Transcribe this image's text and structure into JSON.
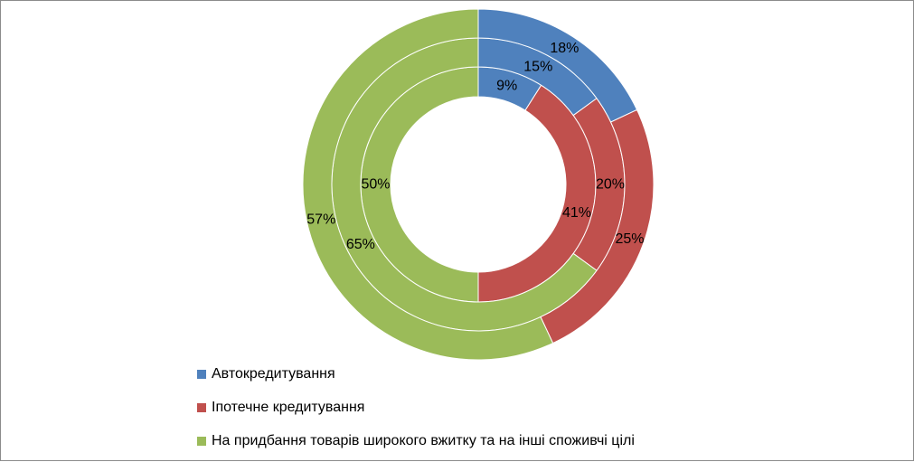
{
  "chart_data": {
    "type": "donut",
    "title": "",
    "legend_position": "bottom",
    "categories": [
      "Автокредитування",
      "Іпотечне кредитування",
      "На придбання товарів широкого вжитку та на інші споживчі цілі"
    ],
    "colors": [
      "#4F81BD",
      "#C0504D",
      "#9BBB59"
    ],
    "series": [
      {
        "values": [
          9,
          41,
          50
        ],
        "labels": [
          "9%",
          "41%",
          "50%"
        ]
      },
      {
        "values": [
          15,
          20,
          65
        ],
        "labels": [
          "15%",
          "20%",
          "65%"
        ]
      },
      {
        "values": [
          18,
          25,
          57
        ],
        "labels": [
          "18%",
          "25%",
          "57%"
        ]
      }
    ]
  }
}
